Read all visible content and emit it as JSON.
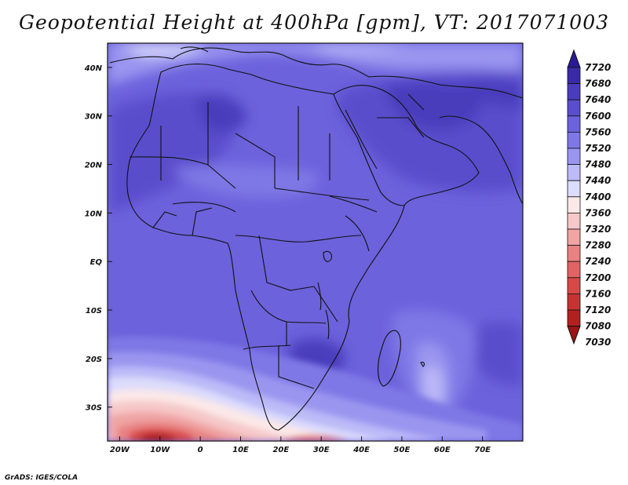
{
  "title": "Geopotential Height at 400hPa [gpm], VT: 2017071003",
  "credit": "GrADS: IGES/COLA",
  "map": {
    "lon_range": [
      -23,
      80
    ],
    "lat_range": [
      -37,
      45
    ],
    "lat_ticks": [
      {
        "lat": 40,
        "label": "40N"
      },
      {
        "lat": 30,
        "label": "30N"
      },
      {
        "lat": 20,
        "label": "20N"
      },
      {
        "lat": 10,
        "label": "10N"
      },
      {
        "lat": 0,
        "label": "EQ"
      },
      {
        "lat": -10,
        "label": "10S"
      },
      {
        "lat": -20,
        "label": "20S"
      },
      {
        "lat": -30,
        "label": "30S"
      }
    ],
    "lon_ticks": [
      {
        "lon": -20,
        "label": "20W"
      },
      {
        "lon": -10,
        "label": "10W"
      },
      {
        "lon": 0,
        "label": "0"
      },
      {
        "lon": 10,
        "label": "10E"
      },
      {
        "lon": 20,
        "label": "20E"
      },
      {
        "lon": 30,
        "label": "30E"
      },
      {
        "lon": 40,
        "label": "40E"
      },
      {
        "lon": 50,
        "label": "50E"
      },
      {
        "lon": 60,
        "label": "60E"
      },
      {
        "lon": 70,
        "label": "70E"
      }
    ],
    "base_color": "#6c62dc"
  },
  "colorbar": {
    "levels": [
      "7720",
      "7680",
      "7640",
      "7600",
      "7560",
      "7520",
      "7480",
      "7440",
      "7400",
      "7360",
      "7320",
      "7280",
      "7240",
      "7200",
      "7160",
      "7120",
      "7080",
      "7030"
    ],
    "colors": [
      "#2a1a96",
      "#3a2aa8",
      "#4a3cbc",
      "#5a4ecc",
      "#6c62dc",
      "#7e78e6",
      "#9a96f0",
      "#bcbaf8",
      "#dcdcfc",
      "#fbe8e8",
      "#f6c8c8",
      "#f0a4a4",
      "#e88282",
      "#e06464",
      "#d84848",
      "#c83232",
      "#b42020",
      "#9c1414"
    ]
  }
}
